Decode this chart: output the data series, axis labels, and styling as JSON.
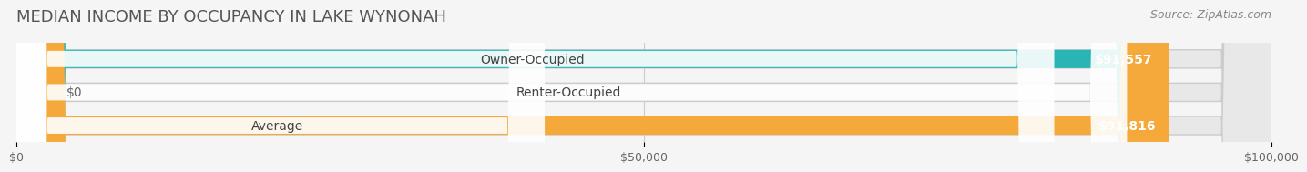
{
  "title": "MEDIAN INCOME BY OCCUPANCY IN LAKE WYNONAH",
  "source": "Source: ZipAtlas.com",
  "categories": [
    "Owner-Occupied",
    "Renter-Occupied",
    "Average"
  ],
  "values": [
    91557,
    0,
    91816
  ],
  "bar_colors": [
    "#2ab5b5",
    "#c4a8d4",
    "#f5a93a"
  ],
  "value_labels": [
    "$91,557",
    "$0",
    "$91,816"
  ],
  "xlim": [
    0,
    100000
  ],
  "xticks": [
    0,
    50000,
    100000
  ],
  "xtick_labels": [
    "$0",
    "$50,000",
    "$100,000"
  ],
  "background_color": "#f5f5f5",
  "bar_background_color": "#e8e8e8",
  "title_fontsize": 13,
  "source_fontsize": 9,
  "label_fontsize": 10,
  "value_fontsize": 10
}
